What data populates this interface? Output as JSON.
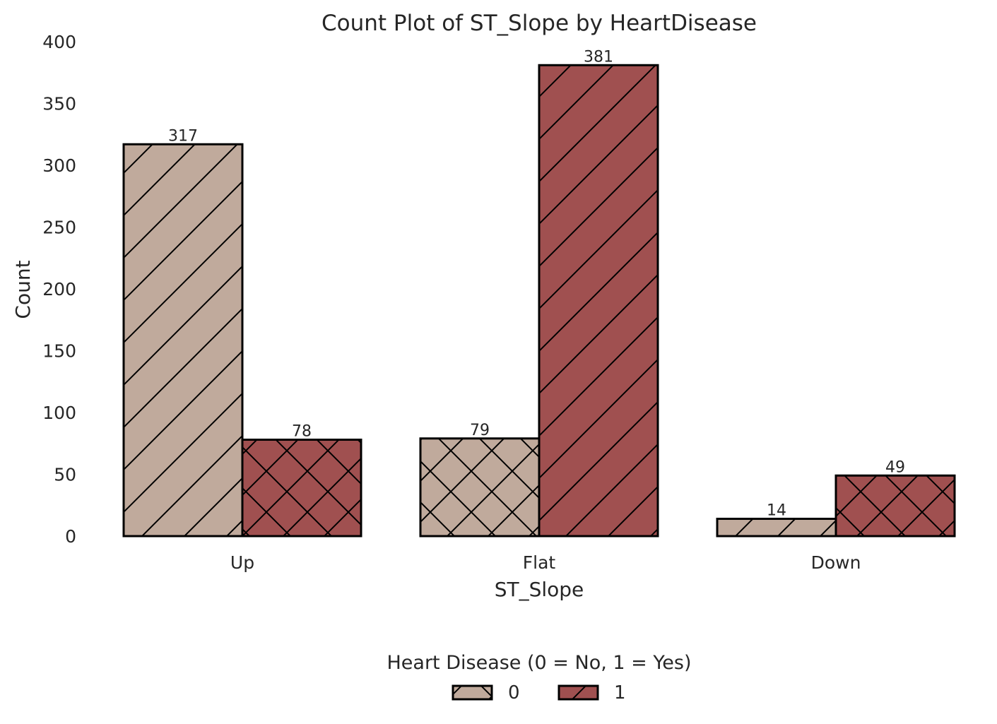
{
  "chart_data": {
    "type": "bar",
    "title": "Count Plot of ST_Slope by HeartDisease",
    "xlabel": "ST_Slope",
    "ylabel": "Count",
    "categories": [
      "Up",
      "Flat",
      "Down"
    ],
    "series": [
      {
        "name": "0",
        "values": [
          317,
          79,
          14
        ],
        "color": "#c0aa9c"
      },
      {
        "name": "1",
        "values": [
          78,
          381,
          49
        ],
        "color": "#a05050"
      }
    ],
    "ylim": [
      0,
      400
    ],
    "yticks": [
      0,
      50,
      100,
      150,
      200,
      250,
      300,
      350,
      400
    ],
    "grid": false,
    "legend": {
      "title": "Heart Disease (0 = No, 1 = Yes)",
      "placement": "bottom-center"
    },
    "edge_color": "#000000",
    "hatch_patterns": [
      "diagonal",
      "cross-diagonal"
    ]
  }
}
